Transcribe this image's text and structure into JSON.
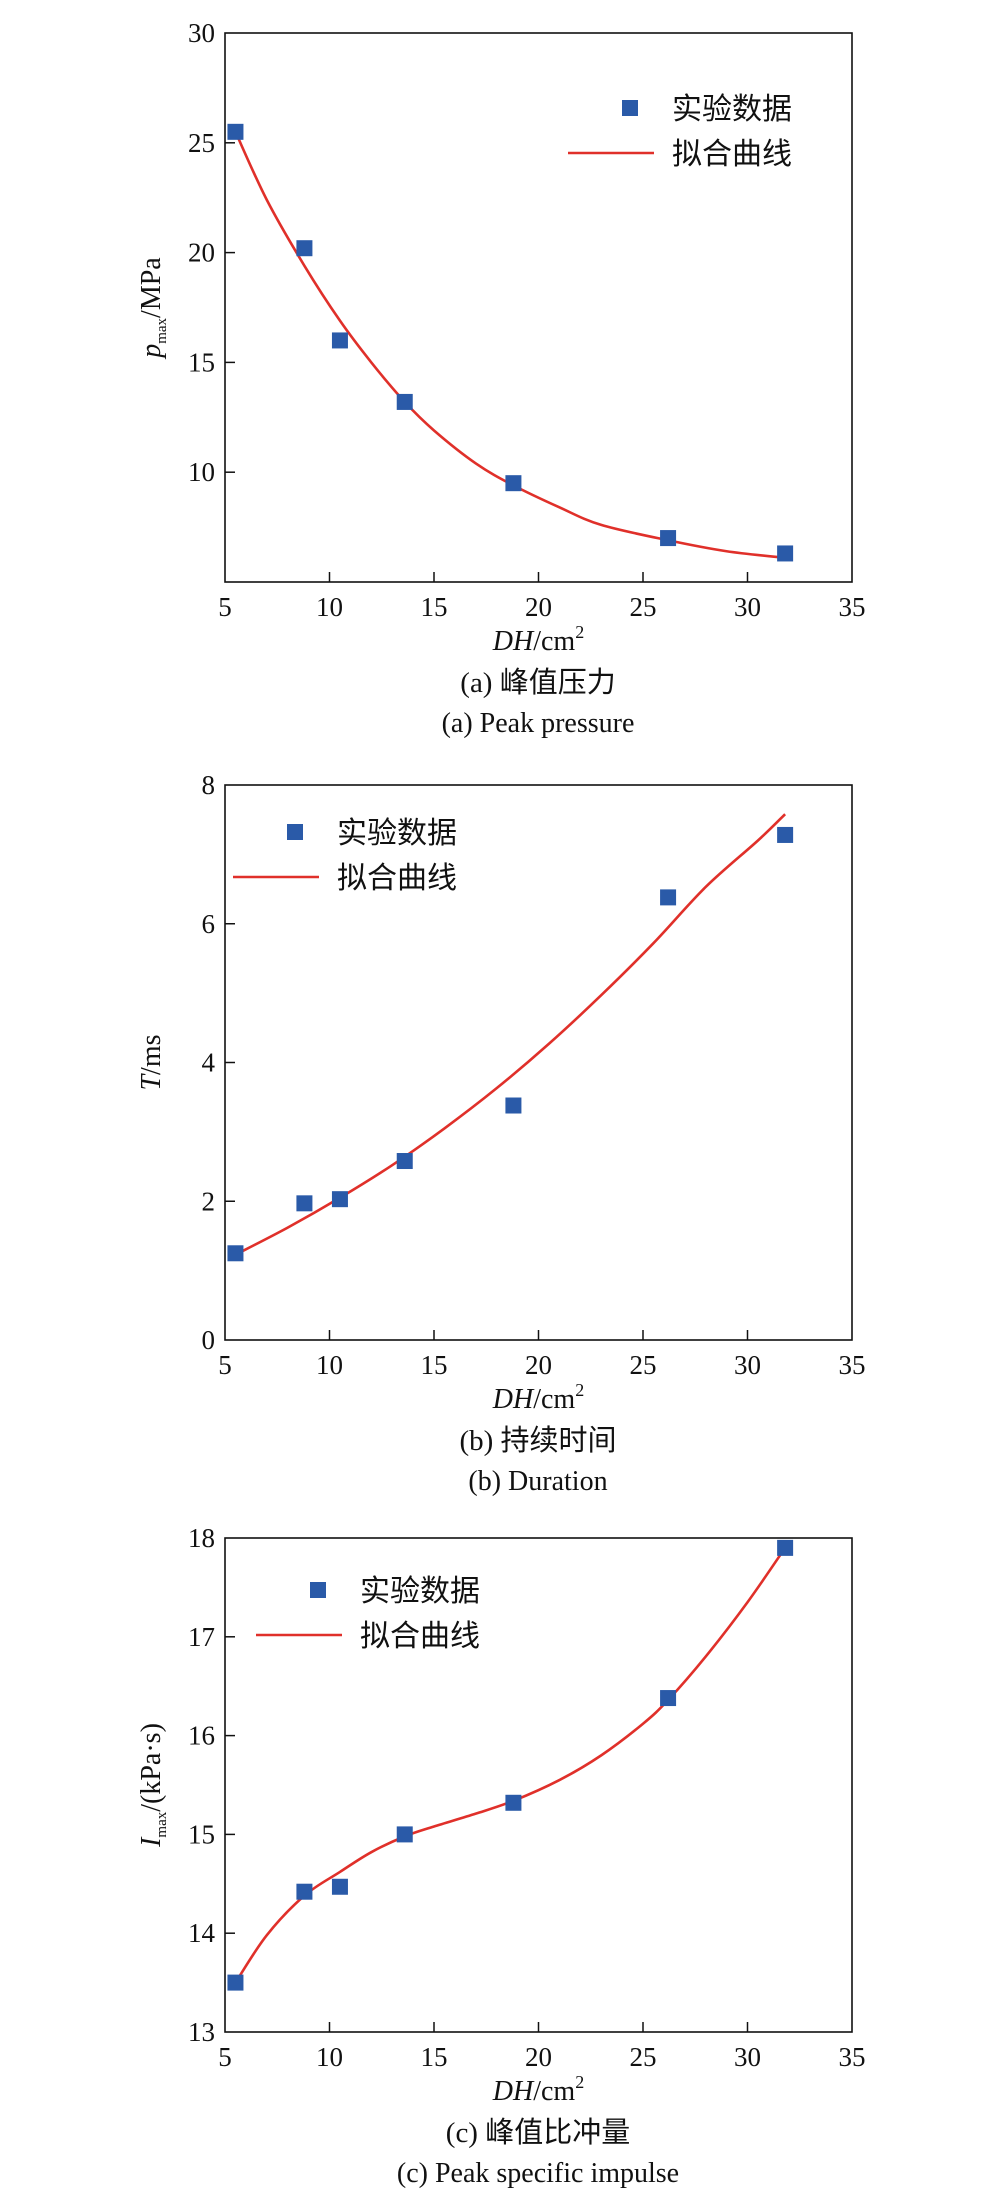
{
  "chart_data": [
    {
      "type": "scatter",
      "xlabel": "DH/cm²",
      "xlabel_italic": "DH",
      "xlabel_unit": "/cm",
      "xlabel_sup": "2",
      "ylabel_main": "p",
      "ylabel_sub": "max",
      "ylabel_unit": "/MPa",
      "xlim": [
        5,
        35
      ],
      "ylim": [
        5,
        30
      ],
      "xticks": [
        "5",
        "10",
        "15",
        "20",
        "25",
        "30",
        "35"
      ],
      "yticks": [
        "10",
        "15",
        "20",
        "25",
        "30"
      ],
      "legend_position": "top-right",
      "series": [
        {
          "name": "实验数据",
          "kind": "points",
          "color": "#2a5aa8",
          "x": [
            5.5,
            8.8,
            10.5,
            13.6,
            18.8,
            26.2,
            31.8
          ],
          "y": [
            25.5,
            20.2,
            16.0,
            13.2,
            9.5,
            7.0,
            6.3
          ]
        },
        {
          "name": "拟合曲线",
          "kind": "curve",
          "color": "#e0302a",
          "x": [
            5.5,
            7,
            8.8,
            10.5,
            12,
            13.6,
            15,
            17,
            18.8,
            21,
            23,
            26.2,
            29,
            31.8
          ],
          "y": [
            25.5,
            22.4,
            19.4,
            16.9,
            15.0,
            13.2,
            11.9,
            10.4,
            9.4,
            8.4,
            7.6,
            6.9,
            6.4,
            6.1
          ]
        }
      ],
      "caption_cn": "(a) 峰值压力",
      "caption_en": "(a) Peak pressure"
    },
    {
      "type": "scatter",
      "xlabel": "DH/cm²",
      "xlabel_italic": "DH",
      "xlabel_unit": "/cm",
      "xlabel_sup": "2",
      "ylabel_main": "T",
      "ylabel_sub": "",
      "ylabel_unit": "/ms",
      "xlim": [
        5,
        35
      ],
      "ylim": [
        0,
        8
      ],
      "xticks": [
        "5",
        "10",
        "15",
        "20",
        "25",
        "30",
        "35"
      ],
      "yticks": [
        "0",
        "2",
        "4",
        "6",
        "8"
      ],
      "legend_position": "top-left",
      "series": [
        {
          "name": "实验数据",
          "kind": "points",
          "color": "#2a5aa8",
          "x": [
            5.5,
            8.8,
            10.5,
            13.6,
            18.8,
            26.2,
            31.8
          ],
          "y": [
            1.25,
            1.97,
            2.03,
            2.58,
            3.38,
            6.38,
            7.28
          ]
        },
        {
          "name": "拟合曲线",
          "kind": "curve",
          "color": "#e0302a",
          "x": [
            5.5,
            8,
            10.5,
            13,
            15.5,
            18,
            20.5,
            23,
            25.5,
            28,
            30.5,
            31.8
          ],
          "y": [
            1.23,
            1.62,
            2.05,
            2.52,
            3.05,
            3.63,
            4.27,
            4.97,
            5.72,
            6.53,
            7.2,
            7.58
          ]
        }
      ],
      "caption_cn": "(b) 持续时间",
      "caption_en": "(b) Duration"
    },
    {
      "type": "scatter",
      "xlabel": "DH/cm²",
      "xlabel_italic": "DH",
      "xlabel_unit": "/cm",
      "xlabel_sup": "2",
      "ylabel_main": "I",
      "ylabel_sub": "max",
      "ylabel_unit": "/(kPa·s)",
      "xlim": [
        5,
        35
      ],
      "ylim": [
        13,
        18
      ],
      "xticks": [
        "5",
        "10",
        "15",
        "20",
        "25",
        "30",
        "35"
      ],
      "yticks": [
        "13",
        "14",
        "15",
        "16",
        "17",
        "18"
      ],
      "legend_position": "top-left",
      "series": [
        {
          "name": "实验数据",
          "kind": "points",
          "color": "#2a5aa8",
          "x": [
            5.5,
            8.8,
            10.5,
            13.6,
            18.8,
            26.2,
            31.8
          ],
          "y": [
            13.5,
            14.42,
            14.47,
            15.0,
            15.32,
            16.38,
            17.9
          ]
        },
        {
          "name": "拟合曲线",
          "kind": "curve",
          "color": "#e0302a",
          "x": [
            5.5,
            7,
            8.8,
            10.5,
            12,
            13.6,
            15,
            17,
            18.8,
            21,
            23,
            25,
            26.2,
            28,
            30,
            31.8
          ],
          "y": [
            13.5,
            13.98,
            14.38,
            14.62,
            14.82,
            14.98,
            15.08,
            15.21,
            15.34,
            15.55,
            15.8,
            16.12,
            16.36,
            16.8,
            17.35,
            17.9
          ]
        }
      ],
      "caption_cn": "(c) 峰值比冲量",
      "caption_en": "(c) Peak specific impulse"
    }
  ]
}
